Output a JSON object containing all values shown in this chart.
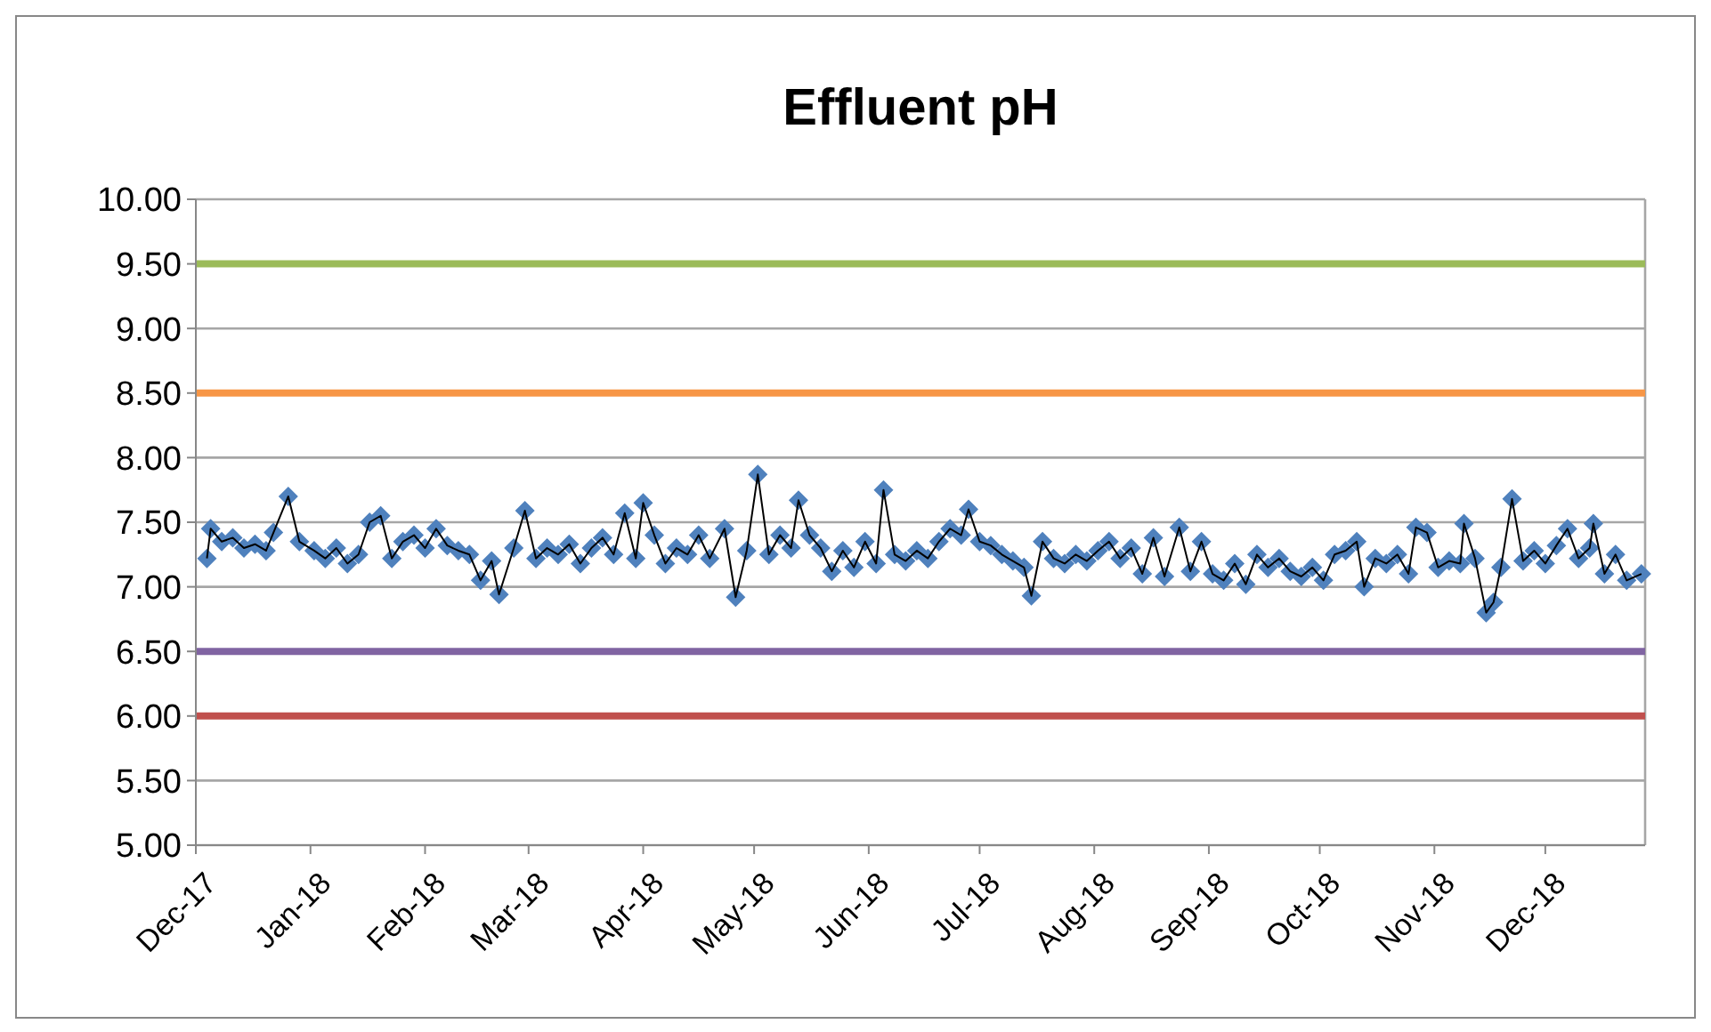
{
  "chart_data": {
    "type": "line",
    "title": "Effluent pH",
    "x": [
      "2017-12-04",
      "2017-12-05",
      "2017-12-08",
      "2017-12-11",
      "2017-12-14",
      "2017-12-17",
      "2017-12-20",
      "2017-12-22",
      "2017-12-26",
      "2017-12-29",
      "2018-01-02",
      "2018-01-05",
      "2018-01-08",
      "2018-01-11",
      "2018-01-14",
      "2018-01-17",
      "2018-01-20",
      "2018-01-23",
      "2018-01-26",
      "2018-01-29",
      "2018-02-01",
      "2018-02-04",
      "2018-02-07",
      "2018-02-10",
      "2018-02-13",
      "2018-02-16",
      "2018-02-19",
      "2018-02-21",
      "2018-02-25",
      "2018-02-28",
      "2018-03-03",
      "2018-03-06",
      "2018-03-09",
      "2018-03-12",
      "2018-03-15",
      "2018-03-18",
      "2018-03-21",
      "2018-03-24",
      "2018-03-27",
      "2018-03-30",
      "2018-04-01",
      "2018-04-04",
      "2018-04-07",
      "2018-04-10",
      "2018-04-13",
      "2018-04-16",
      "2018-04-19",
      "2018-04-23",
      "2018-04-26",
      "2018-04-29",
      "2018-05-02",
      "2018-05-05",
      "2018-05-08",
      "2018-05-11",
      "2018-05-13",
      "2018-05-16",
      "2018-05-19",
      "2018-05-22",
      "2018-05-25",
      "2018-05-28",
      "2018-05-31",
      "2018-06-03",
      "2018-06-05",
      "2018-06-08",
      "2018-06-11",
      "2018-06-14",
      "2018-06-17",
      "2018-06-20",
      "2018-06-23",
      "2018-06-26",
      "2018-06-28",
      "2018-07-01",
      "2018-07-04",
      "2018-07-07",
      "2018-07-10",
      "2018-07-13",
      "2018-07-15",
      "2018-07-18",
      "2018-07-21",
      "2018-07-24",
      "2018-07-27",
      "2018-07-30",
      "2018-08-02",
      "2018-08-05",
      "2018-08-08",
      "2018-08-11",
      "2018-08-14",
      "2018-08-17",
      "2018-08-20",
      "2018-08-24",
      "2018-08-27",
      "2018-08-30",
      "2018-09-02",
      "2018-09-05",
      "2018-09-08",
      "2018-09-11",
      "2018-09-14",
      "2018-09-17",
      "2018-09-20",
      "2018-09-23",
      "2018-09-26",
      "2018-09-29",
      "2018-10-02",
      "2018-10-05",
      "2018-10-08",
      "2018-10-11",
      "2018-10-13",
      "2018-10-16",
      "2018-10-19",
      "2018-10-22",
      "2018-10-25",
      "2018-10-27",
      "2018-10-30",
      "2018-11-02",
      "2018-11-05",
      "2018-11-08",
      "2018-11-09",
      "2018-11-12",
      "2018-11-15",
      "2018-11-17",
      "2018-11-19",
      "2018-11-22",
      "2018-11-25",
      "2018-11-28",
      "2018-12-01",
      "2018-12-04",
      "2018-12-07",
      "2018-12-10",
      "2018-12-13",
      "2018-12-14",
      "2018-12-17",
      "2018-12-20",
      "2018-12-23",
      "2018-12-27"
    ],
    "series": [
      {
        "type": "scatter",
        "color": "#4f81bd",
        "marker": "diamond",
        "values": [
          7.22,
          7.45,
          7.35,
          7.38,
          7.3,
          7.33,
          7.28,
          7.42,
          7.7,
          7.35,
          7.28,
          7.22,
          7.3,
          7.18,
          7.25,
          7.5,
          7.55,
          7.22,
          7.35,
          7.4,
          7.3,
          7.45,
          7.32,
          7.28,
          7.25,
          7.05,
          7.2,
          6.94,
          7.3,
          7.59,
          7.22,
          7.3,
          7.25,
          7.33,
          7.18,
          7.3,
          7.38,
          7.25,
          7.57,
          7.22,
          7.65,
          7.4,
          7.18,
          7.3,
          7.25,
          7.4,
          7.22,
          7.45,
          6.92,
          7.28,
          7.87,
          7.25,
          7.4,
          7.3,
          7.67,
          7.4,
          7.3,
          7.12,
          7.28,
          7.15,
          7.35,
          7.18,
          7.75,
          7.25,
          7.2,
          7.28,
          7.22,
          7.35,
          7.45,
          7.4,
          7.6,
          7.35,
          7.32,
          7.25,
          7.2,
          7.15,
          6.93,
          7.35,
          7.22,
          7.18,
          7.25,
          7.2,
          7.28,
          7.35,
          7.22,
          7.3,
          7.1,
          7.38,
          7.08,
          7.46,
          7.12,
          7.35,
          7.1,
          7.05,
          7.18,
          7.02,
          7.25,
          7.15,
          7.22,
          7.12,
          7.08,
          7.15,
          7.05,
          7.25,
          7.28,
          7.35,
          7.0,
          7.22,
          7.18,
          7.25,
          7.1,
          7.46,
          7.42,
          7.15,
          7.2,
          7.18,
          7.49,
          7.22,
          6.8,
          6.88,
          7.15,
          7.68,
          7.2,
          7.28,
          7.18,
          7.32,
          7.45,
          7.22,
          7.3,
          7.49,
          7.1,
          7.25,
          7.05,
          7.1
        ]
      },
      {
        "color": "#000000",
        "marker": "none",
        "line_style": "solid",
        "values": [
          7.22,
          7.45,
          7.35,
          7.38,
          7.3,
          7.33,
          7.28,
          7.42,
          7.7,
          7.35,
          7.28,
          7.22,
          7.3,
          7.18,
          7.25,
          7.5,
          7.55,
          7.22,
          7.35,
          7.4,
          7.3,
          7.45,
          7.32,
          7.28,
          7.25,
          7.05,
          7.2,
          6.94,
          7.3,
          7.59,
          7.22,
          7.3,
          7.25,
          7.33,
          7.18,
          7.3,
          7.38,
          7.25,
          7.57,
          7.22,
          7.65,
          7.4,
          7.18,
          7.3,
          7.25,
          7.4,
          7.22,
          7.45,
          6.92,
          7.28,
          7.87,
          7.25,
          7.4,
          7.3,
          7.67,
          7.4,
          7.3,
          7.12,
          7.28,
          7.15,
          7.35,
          7.18,
          7.75,
          7.25,
          7.2,
          7.28,
          7.22,
          7.35,
          7.45,
          7.4,
          7.6,
          7.35,
          7.32,
          7.25,
          7.2,
          7.15,
          6.93,
          7.35,
          7.22,
          7.18,
          7.25,
          7.2,
          7.28,
          7.35,
          7.22,
          7.3,
          7.1,
          7.38,
          7.08,
          7.46,
          7.12,
          7.35,
          7.1,
          7.05,
          7.18,
          7.02,
          7.25,
          7.15,
          7.22,
          7.12,
          7.08,
          7.15,
          7.05,
          7.25,
          7.28,
          7.35,
          7.0,
          7.22,
          7.18,
          7.25,
          7.1,
          7.46,
          7.42,
          7.15,
          7.2,
          7.18,
          7.49,
          7.22,
          6.8,
          6.88,
          7.15,
          7.68,
          7.2,
          7.28,
          7.18,
          7.32,
          7.45,
          7.22,
          7.3,
          7.49,
          7.1,
          7.25,
          7.05,
          7.1
        ]
      }
    ],
    "xlim": [
      "2017-12-01",
      "2018-12-28"
    ],
    "xticks": [
      {
        "value": "2017-12-01",
        "label": "Dec-17"
      },
      {
        "value": "2018-01-01",
        "label": "Jan-18"
      },
      {
        "value": "2018-02-01",
        "label": "Feb-18"
      },
      {
        "value": "2018-03-01",
        "label": "Mar-18"
      },
      {
        "value": "2018-04-01",
        "label": "Apr-18"
      },
      {
        "value": "2018-05-01",
        "label": "May-18"
      },
      {
        "value": "2018-06-01",
        "label": "Jun-18"
      },
      {
        "value": "2018-07-01",
        "label": "Jul-18"
      },
      {
        "value": "2018-08-01",
        "label": "Aug-18"
      },
      {
        "value": "2018-09-01",
        "label": "Sep-18"
      },
      {
        "value": "2018-10-01",
        "label": "Oct-18"
      },
      {
        "value": "2018-11-01",
        "label": "Nov-18"
      },
      {
        "value": "2018-12-01",
        "label": "Dec-18"
      }
    ],
    "ylim": [
      5,
      10
    ],
    "yticks": [
      {
        "value": 5,
        "label": "5.00"
      },
      {
        "value": 5.5,
        "label": "5.50"
      },
      {
        "value": 6,
        "label": "6.00"
      },
      {
        "value": 6.5,
        "label": "6.50"
      },
      {
        "value": 7,
        "label": "7.00"
      },
      {
        "value": 7.5,
        "label": "7.50"
      },
      {
        "value": 8,
        "label": "8.00"
      },
      {
        "value": 8.5,
        "label": "8.50"
      },
      {
        "value": 9,
        "label": "9.00"
      },
      {
        "value": 9.5,
        "label": "9.50"
      },
      {
        "value": 10,
        "label": "10.00"
      }
    ],
    "grid": "y",
    "ref_lines": [
      {
        "axis": "y",
        "value": 9.5,
        "color": "#9bbb59"
      },
      {
        "axis": "y",
        "value": 8.5,
        "color": "#f79646"
      },
      {
        "axis": "y",
        "value": 6.5,
        "color": "#8064a2"
      },
      {
        "axis": "y",
        "value": 6,
        "color": "#c0504d"
      }
    ]
  }
}
